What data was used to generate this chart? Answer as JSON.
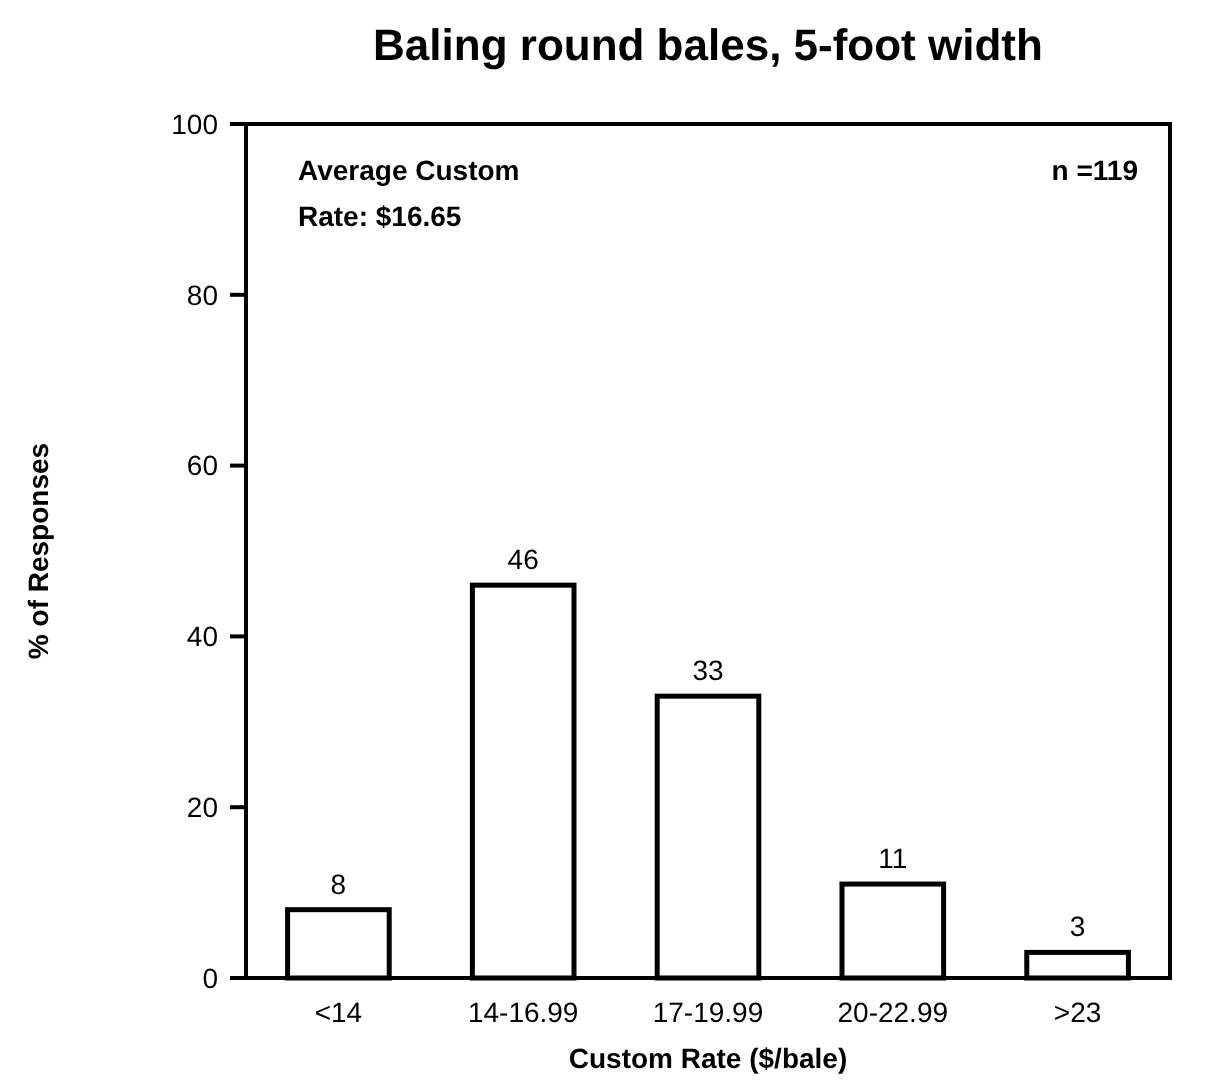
{
  "chart_data": {
    "type": "bar",
    "title": "Baling round bales, 5-foot width",
    "xlabel": "Custom Rate ($/bale)",
    "ylabel": "% of Responses",
    "categories": [
      "<14",
      "14-16.99",
      "17-19.99",
      "20-22.99",
      ">23"
    ],
    "values": [
      8,
      46,
      33,
      11,
      3
    ],
    "color": "#ffffff",
    "ylim": [
      0,
      100
    ],
    "yticks": [
      0,
      20,
      40,
      60,
      80,
      100
    ],
    "data_labels": true,
    "grid": false,
    "annotations": [
      "Average Custom\nRate: $16.65",
      "n =119"
    ]
  }
}
